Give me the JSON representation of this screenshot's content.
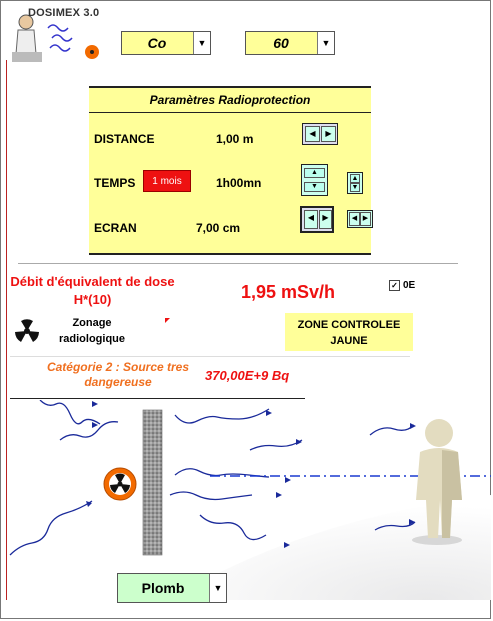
{
  "app": {
    "title": "DOSIMEX 3.0"
  },
  "source": {
    "element": "Co",
    "isotope": "60"
  },
  "panel": {
    "title": "Paramètres Radioprotection",
    "distance_label": "DISTANCE",
    "distance_value": "1,00 m",
    "temps_label": "TEMPS",
    "temps_button": "1 mois",
    "temps_value": "1h00mn",
    "ecran_label": "ECRAN",
    "ecran_value": "7,00  cm"
  },
  "dose": {
    "label": "Débit d'équivalent de dose H*(10)",
    "value": "1,95 mSv/h",
    "checkbox_label": "0E"
  },
  "zonage": {
    "label": "Zonage radiologique",
    "zone_text": "ZONE CONTROLEE JAUNE",
    "zone_color": "#ffff99"
  },
  "categorie": {
    "text": "Catégorie 2 : Source tres dangereuse",
    "activity": "370,00E+9 Bq"
  },
  "screen_material": "Plomb",
  "colors": {
    "panel_bg": "#ffff99",
    "accent_red": "#ee1111",
    "category_orange": "#f07020",
    "plomb_bg": "#ccffcc"
  }
}
